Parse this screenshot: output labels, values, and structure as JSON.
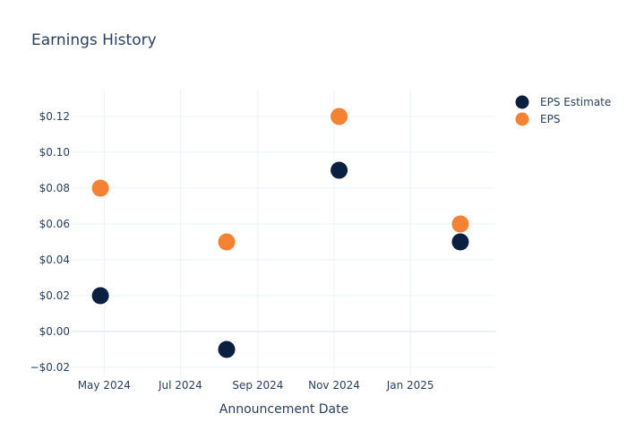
{
  "chart_data": {
    "type": "scatter",
    "title": "Earnings History",
    "xlabel": "Announcement Date",
    "ylabel": "",
    "ylim": [
      -0.025,
      0.135
    ],
    "xlim": [
      "2024-04-05",
      "2025-03-10"
    ],
    "x_ticks": [
      {
        "date": "2024-05-01",
        "label": "May 2024"
      },
      {
        "date": "2024-07-01",
        "label": "Jul 2024"
      },
      {
        "date": "2024-09-01",
        "label": "Sep 2024"
      },
      {
        "date": "2024-11-01",
        "label": "Nov 2024"
      },
      {
        "date": "2025-01-01",
        "label": "Jan 2025"
      }
    ],
    "y_ticks": [
      {
        "value": -0.02,
        "label": "−$0.02"
      },
      {
        "value": 0.0,
        "label": "$0.00"
      },
      {
        "value": 0.02,
        "label": "$0.02"
      },
      {
        "value": 0.04,
        "label": "$0.04"
      },
      {
        "value": 0.06,
        "label": "$0.06"
      },
      {
        "value": 0.08,
        "label": "$0.08"
      },
      {
        "value": 0.1,
        "label": "$0.10"
      },
      {
        "value": 0.12,
        "label": "$0.12"
      }
    ],
    "x": [
      "2024-04-28",
      "2024-08-07",
      "2024-11-05",
      "2025-02-10"
    ],
    "series": [
      {
        "name": "EPS Estimate",
        "color": "#0b1f41",
        "values": [
          0.02,
          -0.01,
          0.09,
          0.05
        ]
      },
      {
        "name": "EPS",
        "color": "#f58233",
        "values": [
          0.08,
          0.05,
          0.12,
          0.06
        ]
      }
    ],
    "grid": true,
    "legend": "top-right"
  }
}
